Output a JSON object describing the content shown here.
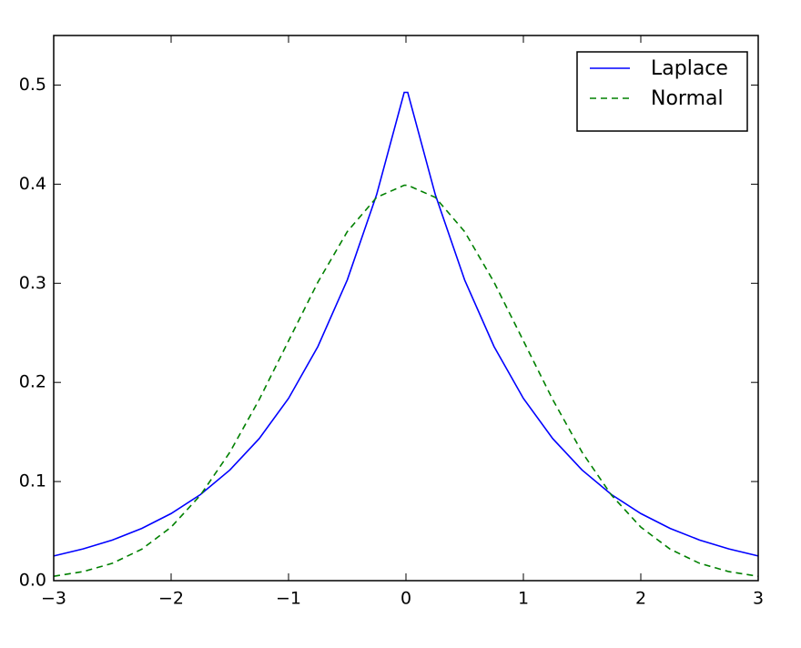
{
  "chart_data": {
    "type": "line",
    "x": [
      -3,
      -2.75,
      -2.5,
      -2.25,
      -2,
      -1.75,
      -1.5,
      -1.25,
      -1,
      -0.75,
      -0.5,
      -0.25,
      -0.015,
      0.015,
      0.25,
      0.5,
      0.75,
      1,
      1.25,
      1.5,
      1.75,
      2,
      2.25,
      2.5,
      2.75,
      3
    ],
    "series": [
      {
        "name": "Laplace",
        "color": "#0000ff",
        "linestyle": "solid",
        "values": [
          0.0249,
          0.032,
          0.041,
          0.0527,
          0.0677,
          0.0869,
          0.1116,
          0.1433,
          0.1839,
          0.2362,
          0.3033,
          0.3894,
          0.4926,
          0.4926,
          0.3894,
          0.3033,
          0.2362,
          0.1839,
          0.1433,
          0.1116,
          0.0869,
          0.0677,
          0.0527,
          0.041,
          0.032,
          0.0249
        ]
      },
      {
        "name": "Normal",
        "color": "#008000",
        "linestyle": "dashed",
        "values": [
          0.00443,
          0.0091,
          0.01753,
          0.03174,
          0.05399,
          0.08628,
          0.12952,
          0.18265,
          0.24197,
          0.30114,
          0.35207,
          0.38667,
          0.3989,
          0.3989,
          0.38667,
          0.35207,
          0.30114,
          0.24197,
          0.18265,
          0.12952,
          0.08628,
          0.05399,
          0.03174,
          0.01753,
          0.0091,
          0.00443
        ]
      }
    ],
    "xlim": [
      -3,
      3
    ],
    "xticks": [
      {
        "value": -3,
        "label": "−3"
      },
      {
        "value": -2,
        "label": "−2"
      },
      {
        "value": -1,
        "label": "−1"
      },
      0,
      1,
      2,
      3
    ],
    "ylim": [
      0,
      0.55
    ],
    "yticks": [
      {
        "value": 0,
        "label": "0.0"
      },
      0.1,
      0.2,
      0.3,
      0.4,
      0.5
    ],
    "grid": false,
    "legend": "upper right"
  }
}
